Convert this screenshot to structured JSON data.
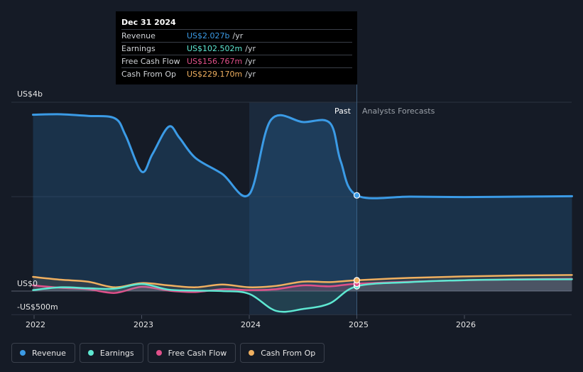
{
  "tooltip": {
    "date": "Dec 31 2024",
    "rows": [
      {
        "label": "Revenue",
        "value": "US$2.027b",
        "unit": "/yr",
        "color": "#3b9be6"
      },
      {
        "label": "Earnings",
        "value": "US$102.502m",
        "unit": "/yr",
        "color": "#5ee8d2"
      },
      {
        "label": "Free Cash Flow",
        "value": "US$156.767m",
        "unit": "/yr",
        "color": "#e0508a"
      },
      {
        "label": "Cash From Op",
        "value": "US$229.170m",
        "unit": "/yr",
        "color": "#f0b060"
      }
    ]
  },
  "labels": {
    "past": "Past",
    "forecast": "Analysts Forecasts"
  },
  "chart_data": {
    "type": "line",
    "x_ticks": [
      "2022",
      "2023",
      "2024",
      "2025",
      "2026"
    ],
    "y_ticks": [
      "US$4b",
      "US$0",
      "-US$500m"
    ],
    "ylim": [
      -500,
      4000
    ],
    "y_unit": "US$m",
    "divider_x": 2025.0,
    "highlight_start_x": 2024.0,
    "series": [
      {
        "name": "Revenue",
        "color": "#3b9be6",
        "points": [
          [
            2021.99,
            3735
          ],
          [
            2022.25,
            3745
          ],
          [
            2022.5,
            3710
          ],
          [
            2022.75,
            3660
          ],
          [
            2022.85,
            3300
          ],
          [
            2023.0,
            2530
          ],
          [
            2023.1,
            2900
          ],
          [
            2023.25,
            3480
          ],
          [
            2023.35,
            3250
          ],
          [
            2023.5,
            2820
          ],
          [
            2023.75,
            2480
          ],
          [
            2024.0,
            2050
          ],
          [
            2024.2,
            3620
          ],
          [
            2024.5,
            3580
          ],
          [
            2024.75,
            3560
          ],
          [
            2024.85,
            2750
          ],
          [
            2025.0,
            2027
          ],
          [
            2025.5,
            2000
          ],
          [
            2026.0,
            1990
          ],
          [
            2026.5,
            2000
          ],
          [
            2027.0,
            2010
          ]
        ]
      },
      {
        "name": "Earnings",
        "color": "#5ee8d2",
        "points": [
          [
            2021.99,
            20
          ],
          [
            2022.25,
            80
          ],
          [
            2022.5,
            60
          ],
          [
            2022.75,
            50
          ],
          [
            2023.0,
            150
          ],
          [
            2023.25,
            30
          ],
          [
            2023.5,
            10
          ],
          [
            2023.75,
            0
          ],
          [
            2024.0,
            -60
          ],
          [
            2024.25,
            -420
          ],
          [
            2024.5,
            -380
          ],
          [
            2024.75,
            -260
          ],
          [
            2025.0,
            102.5
          ],
          [
            2025.5,
            190
          ],
          [
            2026.0,
            230
          ],
          [
            2026.5,
            245
          ],
          [
            2027.0,
            250
          ]
        ]
      },
      {
        "name": "Free Cash Flow",
        "color": "#e0508a",
        "points": [
          [
            2021.99,
            120
          ],
          [
            2022.25,
            70
          ],
          [
            2022.5,
            40
          ],
          [
            2022.75,
            -40
          ],
          [
            2023.0,
            90
          ],
          [
            2023.25,
            10
          ],
          [
            2023.5,
            -20
          ],
          [
            2023.75,
            40
          ],
          [
            2024.0,
            20
          ],
          [
            2024.25,
            40
          ],
          [
            2024.5,
            120
          ],
          [
            2024.75,
            100
          ],
          [
            2025.0,
            156.8
          ],
          [
            2025.5,
            200
          ],
          [
            2026.0,
            230
          ],
          [
            2026.5,
            250
          ],
          [
            2027.0,
            260
          ]
        ]
      },
      {
        "name": "Cash From Op",
        "color": "#f0b060",
        "points": [
          [
            2021.99,
            300
          ],
          [
            2022.25,
            240
          ],
          [
            2022.5,
            200
          ],
          [
            2022.75,
            80
          ],
          [
            2023.0,
            170
          ],
          [
            2023.25,
            120
          ],
          [
            2023.5,
            80
          ],
          [
            2023.75,
            140
          ],
          [
            2024.0,
            80
          ],
          [
            2024.25,
            110
          ],
          [
            2024.5,
            200
          ],
          [
            2024.75,
            190
          ],
          [
            2025.0,
            229.2
          ],
          [
            2025.5,
            280
          ],
          [
            2026.0,
            310
          ],
          [
            2026.5,
            330
          ],
          [
            2027.0,
            340
          ]
        ]
      }
    ]
  },
  "legend": [
    {
      "label": "Revenue",
      "color": "#3b9be6"
    },
    {
      "label": "Earnings",
      "color": "#5ee8d2"
    },
    {
      "label": "Free Cash Flow",
      "color": "#e0508a"
    },
    {
      "label": "Cash From Op",
      "color": "#f0b060"
    }
  ]
}
